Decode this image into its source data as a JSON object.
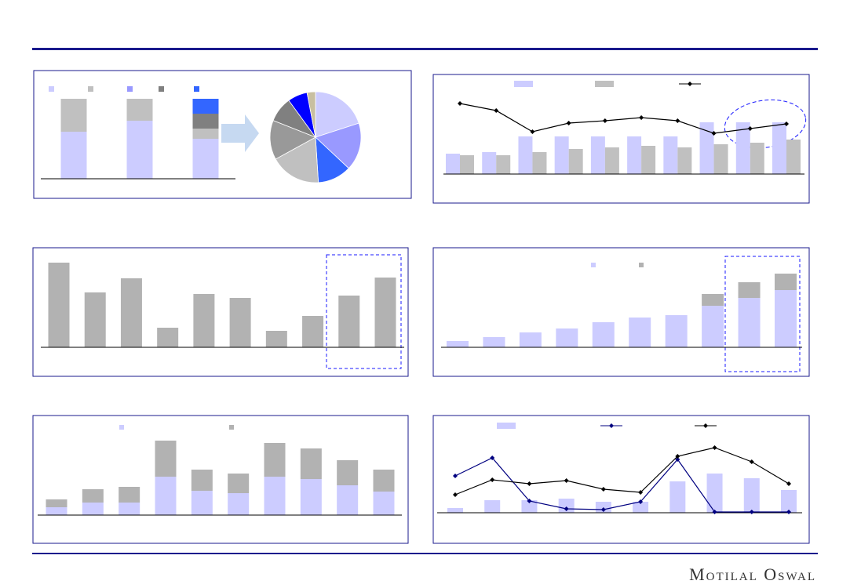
{
  "footer": {
    "brand": "Motilal Oswal"
  },
  "chart_data": [
    {
      "type": "stacked_bar",
      "legend": true,
      "ylim": [
        0,
        102
      ],
      "categories": [
        null,
        null,
        null
      ],
      "series": [
        {
          "color": "#ccccff",
          "values": [
            60,
            74,
            51
          ]
        },
        {
          "color": "#c0c0c0",
          "values": [
            42,
            28,
            13
          ]
        },
        {
          "color": "#9999ff",
          "values": [
            0,
            0,
            0
          ]
        },
        {
          "color": "#808080",
          "values": [
            0,
            0,
            19
          ]
        },
        {
          "color": "#3366ff",
          "values": [
            0,
            0,
            19
          ]
        }
      ]
    },
    {
      "type": "pie",
      "values": [
        20,
        17,
        12,
        18,
        14,
        9,
        7,
        3
      ],
      "colors": [
        "#ccccff",
        "#9999ff",
        "#3366ff",
        "#c0c0c0",
        "#999999",
        "#808080",
        "#0000ff",
        "#c8bfa0"
      ]
    },
    {
      "type": "bar_line",
      "legend": true,
      "ylim": [
        0,
        100
      ],
      "categories": [
        null,
        null,
        null,
        null,
        null,
        null,
        null,
        null,
        null,
        null
      ],
      "series": [
        {
          "color": "#ccccff",
          "values": [
            26,
            28,
            48,
            48,
            48,
            48,
            48,
            66,
            66,
            66
          ]
        },
        {
          "color": "#c0c0c0",
          "values": [
            24,
            24,
            28,
            32,
            34,
            36,
            34,
            38,
            40,
            44
          ]
        },
        {
          "color": "#000000",
          "style": "line",
          "values": [
            90,
            81,
            54,
            65,
            68,
            72,
            68,
            52,
            58,
            64
          ]
        }
      ]
    },
    {
      "type": "bar",
      "legend": false,
      "ylim": [
        0,
        110
      ],
      "categories": [
        null,
        null,
        null,
        null,
        null,
        null,
        null,
        null,
        null,
        null
      ],
      "series": [
        {
          "color": "#b2b2b2",
          "values": [
            108,
            70,
            88,
            25,
            68,
            63,
            21,
            40,
            66,
            89
          ]
        }
      ]
    },
    {
      "type": "stacked_bar",
      "legend": true,
      "ylim": [
        0,
        110
      ],
      "categories": [
        null,
        null,
        null,
        null,
        null,
        null,
        null,
        null,
        null,
        null
      ],
      "series": [
        {
          "color": "#ccccff",
          "values": [
            8,
            13,
            19,
            24,
            32,
            38,
            41,
            53,
            63,
            73
          ]
        },
        {
          "color": "#b2b2b2",
          "values": [
            0,
            0,
            0,
            0,
            0,
            0,
            0,
            15,
            20,
            21
          ]
        }
      ]
    },
    {
      "type": "stacked_bar",
      "legend": true,
      "ylim": [
        0,
        110
      ],
      "categories": [
        null,
        null,
        null,
        null,
        null,
        null,
        null,
        null,
        null,
        null
      ],
      "series": [
        {
          "color": "#ccccff",
          "values": [
            10,
            16,
            16,
            49,
            31,
            28,
            49,
            46,
            38,
            30
          ]
        },
        {
          "color": "#b2b2b2",
          "values": [
            10,
            17,
            20,
            46,
            27,
            25,
            43,
            39,
            32,
            28
          ]
        }
      ]
    },
    {
      "type": "bar_line",
      "legend": true,
      "ylim": [
        0,
        100
      ],
      "categories": [
        null,
        null,
        null,
        null,
        null,
        null,
        null,
        null,
        null,
        null
      ],
      "series": [
        {
          "color": "#ccccff",
          "values": [
            6,
            16,
            16,
            18,
            14,
            14,
            40,
            50,
            44,
            29
          ]
        },
        {
          "color": "#000080",
          "style": "line",
          "values": [
            47,
            70,
            15,
            5,
            4,
            14,
            68,
            1,
            1,
            1
          ]
        },
        {
          "color": "#000000",
          "style": "line",
          "values": [
            23,
            42,
            37,
            41,
            30,
            26,
            72,
            83,
            65,
            37
          ]
        }
      ]
    }
  ]
}
